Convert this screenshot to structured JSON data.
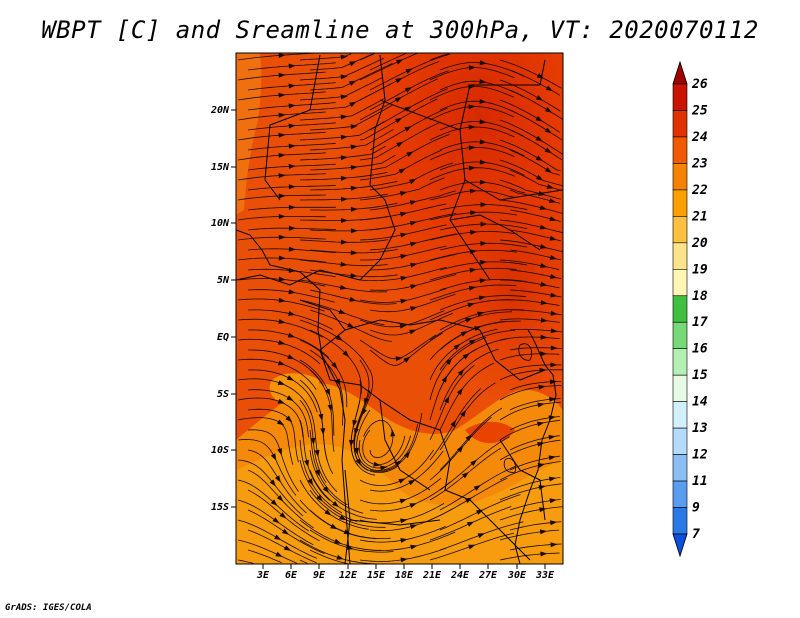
{
  "title": "WBPT [C] and Sreamline at 300hPa, VT: 2020070112",
  "credit": "GrADS: IGES/COLA",
  "map": {
    "variable": "WBPT [C]",
    "overlay": "Sreamline",
    "level": "300hPa",
    "valid_time": "2020070112",
    "lon_range": [
      "0E",
      "35E"
    ],
    "lat_range": [
      "20S",
      "24N"
    ],
    "x_tick_labels": [
      "3E",
      "6E",
      "9E",
      "12E",
      "15E",
      "18E",
      "21E",
      "24E",
      "27E",
      "30E",
      "33E"
    ],
    "y_tick_labels": [
      "20N",
      "15N",
      "10N",
      "5N",
      "EQ",
      "5S",
      "10S",
      "15S"
    ]
  },
  "colorbar": {
    "labels": [
      "26",
      "25",
      "24",
      "23",
      "22",
      "21",
      "20",
      "19",
      "18",
      "17",
      "16",
      "15",
      "14",
      "13",
      "12",
      "11",
      "9",
      "7"
    ],
    "colors": [
      "#a00000",
      "#c81400",
      "#e03200",
      "#f05a00",
      "#f58200",
      "#faa000",
      "#fcc040",
      "#fde38c",
      "#fff5b4",
      "#40c040",
      "#78d878",
      "#b4f0b4",
      "#e6fae6",
      "#d2f0fa",
      "#b4dcfa",
      "#8cbef5",
      "#5a9cf0",
      "#2878e6",
      "#0a50dc"
    ]
  }
}
